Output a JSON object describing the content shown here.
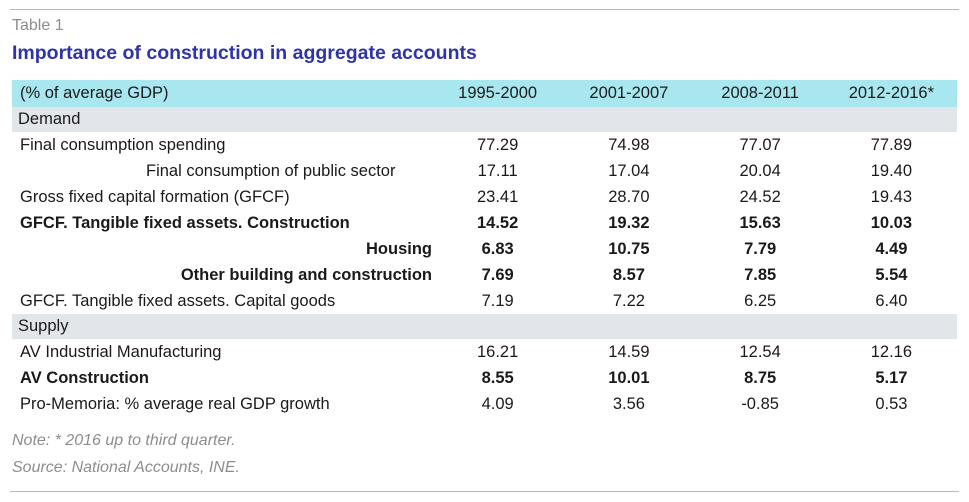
{
  "label": "Table 1",
  "title": "Importance of construction in aggregate accounts",
  "table": {
    "header": [
      "(% of average GDP)",
      "1995-2000",
      "2001-2007",
      "2008-2011",
      "2012-2016*"
    ],
    "rows": [
      {
        "type": "section",
        "label": "Demand"
      },
      {
        "type": "normal",
        "label": "Final consumption spending",
        "values": [
          "77.29",
          "74.98",
          "77.07",
          "77.89"
        ]
      },
      {
        "type": "indent",
        "label": "Final consumption of public sector",
        "values": [
          "17.11",
          "17.04",
          "20.04",
          "19.40"
        ]
      },
      {
        "type": "normal",
        "label": "Gross fixed capital formation (GFCF)",
        "values": [
          "23.41",
          "28.70",
          "24.52",
          "19.43"
        ]
      },
      {
        "type": "bold",
        "label": "GFCF. Tangible fixed assets. Construction",
        "values": [
          "14.52",
          "19.32",
          "15.63",
          "10.03"
        ]
      },
      {
        "type": "bold-right",
        "label": "Housing",
        "values": [
          "6.83",
          "10.75",
          "7.79",
          "4.49"
        ]
      },
      {
        "type": "bold-right",
        "label": "Other building and construction",
        "values": [
          "7.69",
          "8.57",
          "7.85",
          "5.54"
        ]
      },
      {
        "type": "normal",
        "label": "GFCF. Tangible fixed assets. Capital goods",
        "values": [
          "7.19",
          "7.22",
          "6.25",
          "6.40"
        ]
      },
      {
        "type": "section",
        "label": "Supply"
      },
      {
        "type": "normal",
        "label": "AV Industrial Manufacturing",
        "values": [
          "16.21",
          "14.59",
          "12.54",
          "12.16"
        ]
      },
      {
        "type": "bold",
        "label": "AV Construction",
        "values": [
          "8.55",
          "10.01",
          "8.75",
          "5.17"
        ]
      },
      {
        "type": "normal",
        "label": "Pro-Memoria: % average real GDP growth",
        "values": [
          "4.09",
          "3.56",
          "-0.85",
          "0.53"
        ]
      }
    ]
  },
  "notes": {
    "note": "Note: * 2016 up to third quarter.",
    "source": "Source: National Accounts, INE."
  }
}
